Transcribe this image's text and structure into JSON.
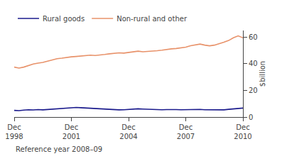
{
  "chart_data": {
    "type": "line",
    "ylabel": "$billion",
    "annotations": [
      "Reference year 2008–09"
    ],
    "categories": [
      "Dec\n1998",
      null,
      null,
      null,
      null,
      null,
      null,
      null,
      null,
      null,
      null,
      null,
      "Dec\n2001",
      null,
      null,
      null,
      null,
      null,
      null,
      null,
      null,
      null,
      null,
      null,
      "Dec\n2004",
      null,
      null,
      null,
      null,
      null,
      null,
      null,
      null,
      null,
      null,
      null,
      "Dec\n2007",
      null,
      null,
      null,
      null,
      null,
      null,
      null,
      null,
      null,
      null,
      null,
      "Dec\n2010"
    ],
    "series": [
      {
        "name": "Rural goods",
        "color": "#1a1a8c",
        "values": [
          5.0,
          4.8,
          5.2,
          5.5,
          5.3,
          5.6,
          5.4,
          5.7,
          6.0,
          6.3,
          6.5,
          6.7,
          7.0,
          7.2,
          7.0,
          6.8,
          6.5,
          6.3,
          6.0,
          5.8,
          5.6,
          5.5,
          5.4,
          5.5,
          5.7,
          6.0,
          6.2,
          6.0,
          5.8,
          5.7,
          5.6,
          5.5,
          5.6,
          5.7,
          5.6,
          5.5,
          5.6,
          5.8,
          5.9,
          5.7,
          5.5,
          5.4,
          5.3,
          5.2,
          5.4,
          5.8,
          6.2,
          6.5,
          6.7
        ]
      },
      {
        "name": "Non-rural and other",
        "color": "#E8926A",
        "values": [
          37.5,
          36.8,
          37.5,
          38.8,
          39.8,
          40.5,
          41.0,
          42.0,
          43.0,
          43.8,
          44.2,
          44.8,
          45.2,
          45.5,
          45.8,
          46.0,
          46.5,
          46.2,
          46.8,
          47.0,
          47.5,
          47.8,
          48.2,
          48.0,
          48.5,
          49.0,
          49.5,
          49.0,
          49.2,
          49.5,
          49.8,
          50.2,
          50.8,
          51.2,
          51.5,
          52.0,
          52.5,
          53.5,
          54.2,
          54.8,
          54.0,
          53.5,
          54.0,
          55.0,
          56.2,
          57.5,
          59.5,
          61.0,
          59.5
        ]
      }
    ],
    "ylim": [
      0,
      65
    ],
    "yticks": [
      0,
      20,
      40,
      60
    ],
    "grid": false,
    "legend": "upper left"
  }
}
